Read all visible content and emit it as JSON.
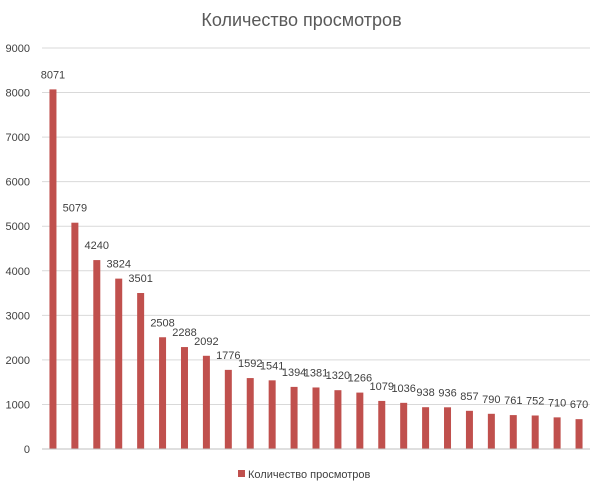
{
  "chart_data": {
    "type": "bar",
    "title": "Количество просмотров",
    "xlabel": "",
    "ylabel": "",
    "ylim": [
      0,
      9000
    ],
    "yticks": [
      0,
      1000,
      2000,
      3000,
      4000,
      5000,
      6000,
      7000,
      8000,
      9000
    ],
    "grid": true,
    "legend_position": "bottom",
    "series": [
      {
        "name": "Количество просмотров",
        "color": "#c0504d",
        "values": [
          8071,
          5079,
          4240,
          3824,
          3501,
          2508,
          2288,
          2092,
          1776,
          1592,
          1541,
          1394,
          1381,
          1320,
          1266,
          1079,
          1036,
          938,
          936,
          857,
          790,
          761,
          752,
          710,
          670
        ]
      }
    ]
  }
}
